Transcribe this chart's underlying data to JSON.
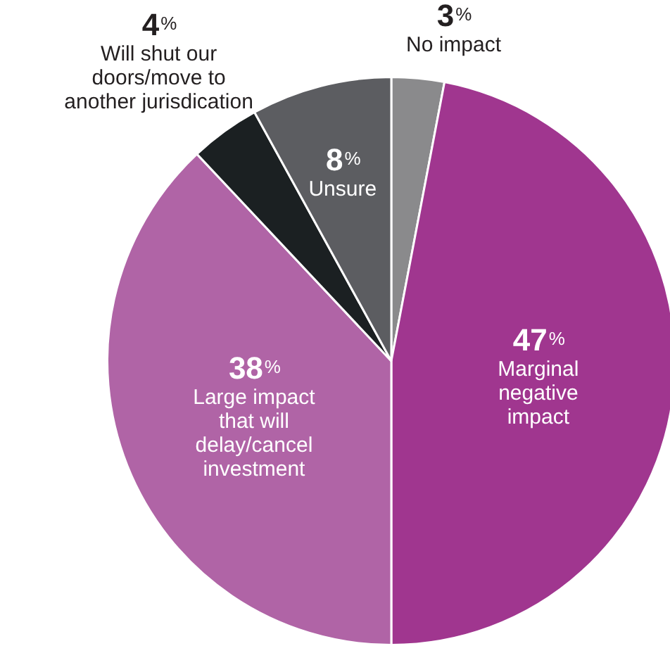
{
  "chart_data": {
    "type": "pie",
    "categories": [
      "No impact",
      "Marginal negative impact",
      "Large impact that will delay/cancel investment",
      "Will shut our doors/move to another jurisdication",
      "Unsure"
    ],
    "values": [
      3,
      47,
      38,
      4,
      8
    ],
    "value_labels": [
      "3%",
      "47%",
      "38%",
      "4%",
      "8%"
    ],
    "colors": [
      "#8a8a8c",
      "#a0368f",
      "#b064a6",
      "#1b2022",
      "#5c5d61"
    ],
    "legend": false
  }
}
